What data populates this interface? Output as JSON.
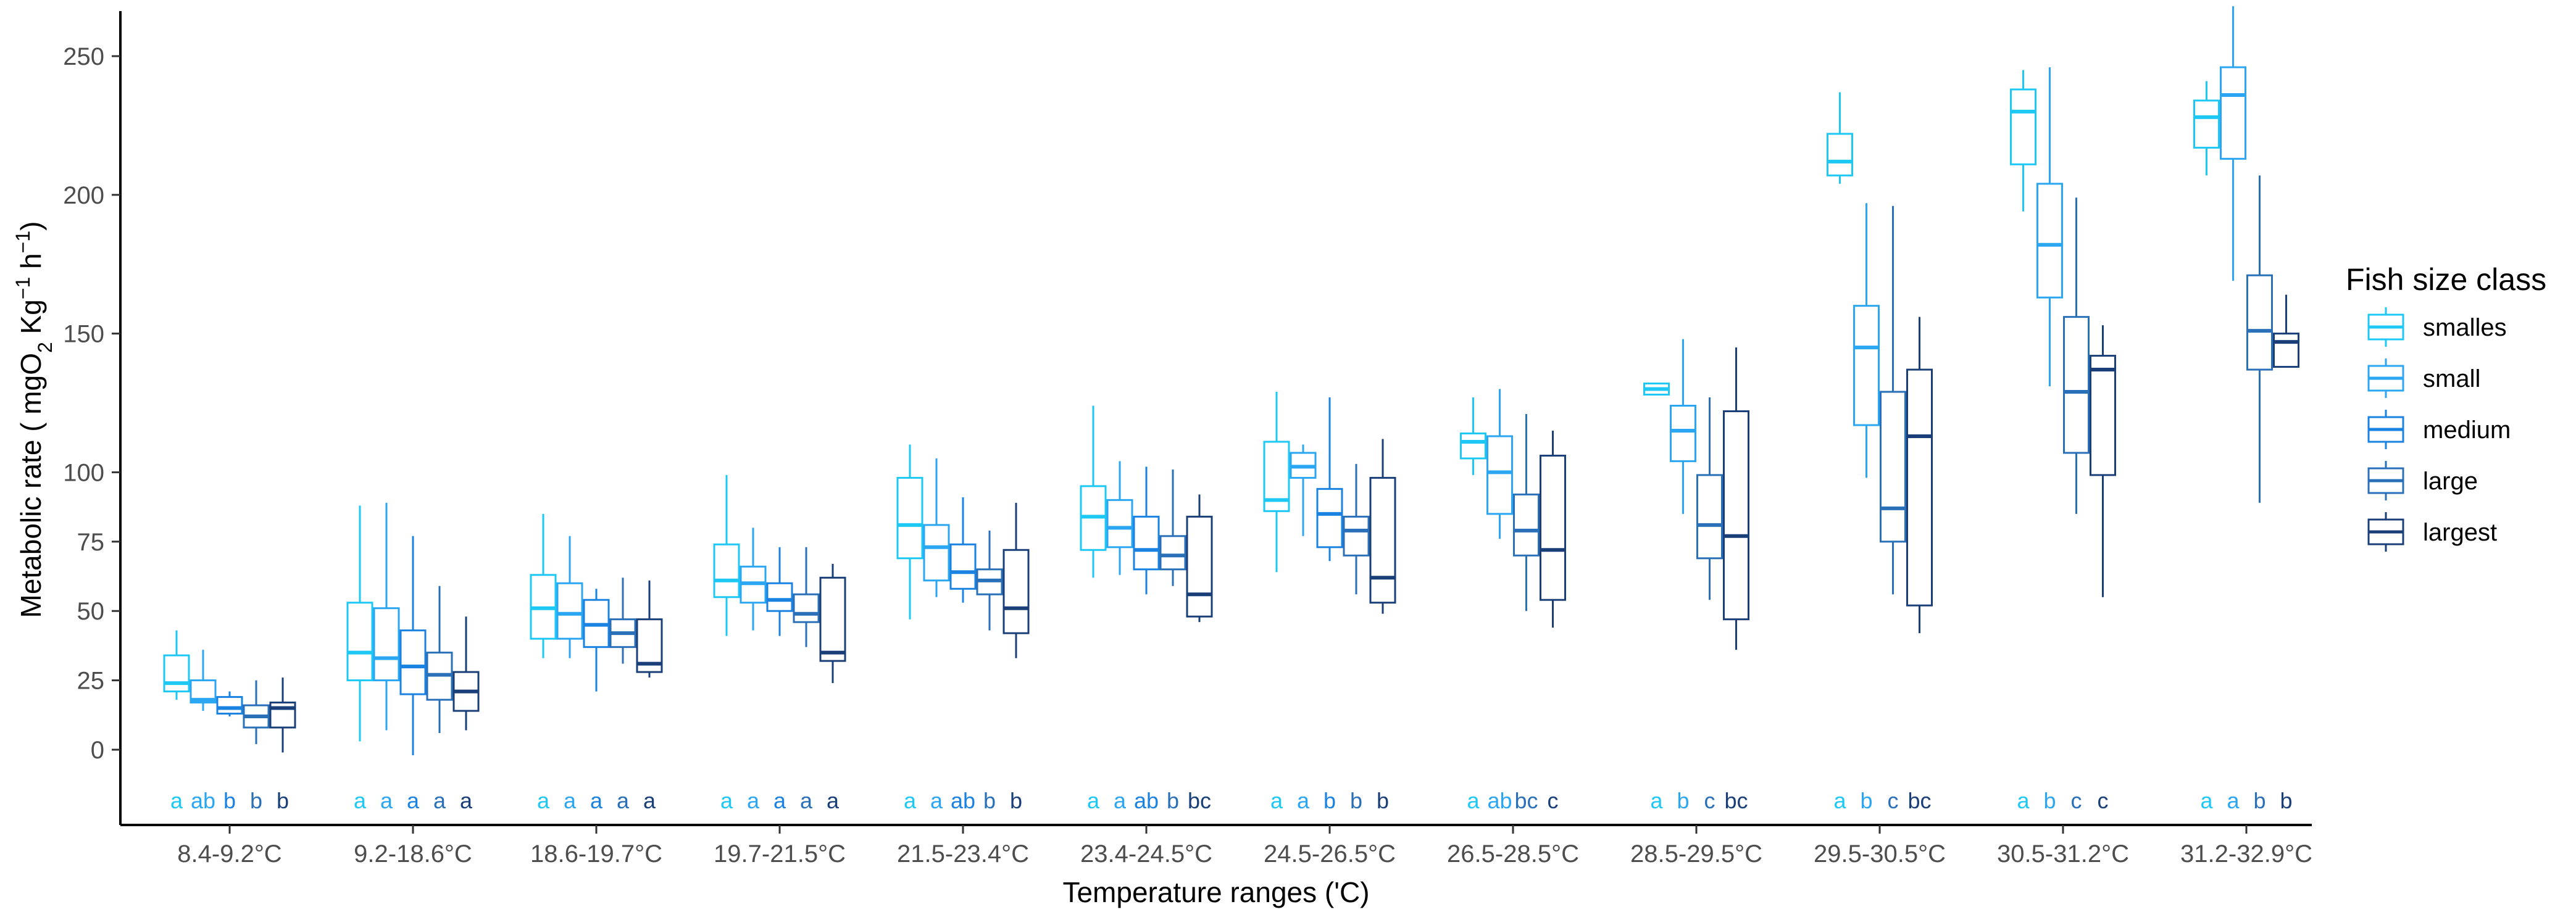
{
  "chart_data": {
    "type": "boxplot",
    "title": "",
    "xlabel": "Temperature ranges ('C)",
    "ylabel": {
      "prefix": "Metabolic rate ( mgO",
      "sub": "2",
      "mid1": " Kg",
      "sup1": "−1",
      "mid2": " h",
      "sup2": "−1",
      "suffix": ")"
    },
    "ylim": [
      -28,
      268
    ],
    "yticks": [
      0,
      25,
      50,
      75,
      100,
      150,
      200,
      250
    ],
    "categories": [
      "8.4-9.2°C",
      "9.2-18.6°C",
      "18.6-19.7°C",
      "19.7-21.5°C",
      "21.5-23.4°C",
      "23.4-24.5°C",
      "24.5-26.5°C",
      "26.5-28.5°C",
      "28.5-29.5°C",
      "29.5-30.5°C",
      "30.5-31.2°C",
      "31.2-32.9°C"
    ],
    "legend": {
      "title": "Fish size class",
      "position": "right",
      "entries": [
        "smalles",
        "small",
        "medium",
        "large",
        "largest"
      ]
    },
    "series": [
      {
        "name": "smalles",
        "color": "#1ec8f5",
        "stats": [
          [
            18,
            21,
            24,
            34,
            43
          ],
          [
            3,
            25,
            35,
            53,
            88
          ],
          [
            33,
            40,
            51,
            63,
            85
          ],
          [
            41,
            55,
            61,
            74,
            99
          ],
          [
            47,
            69,
            81,
            98,
            110
          ],
          [
            62,
            72,
            84,
            95,
            124
          ],
          [
            64,
            86,
            90,
            111,
            129
          ],
          [
            99,
            105,
            111,
            114,
            127
          ],
          [
            null,
            128,
            130,
            132,
            null
          ],
          [
            204,
            207,
            212,
            222,
            237
          ],
          [
            194,
            211,
            230,
            238,
            245
          ],
          [
            207,
            217,
            228,
            234,
            241
          ]
        ]
      },
      {
        "name": "small",
        "color": "#2aa6f2",
        "stats": [
          [
            14,
            17,
            18,
            25,
            36
          ],
          [
            7,
            25,
            33,
            51,
            89
          ],
          [
            33,
            40,
            49,
            60,
            77
          ],
          [
            43,
            53,
            60,
            66,
            80
          ],
          [
            55,
            61,
            73,
            81,
            105
          ],
          [
            63,
            73,
            80,
            90,
            104
          ],
          [
            77,
            98,
            102,
            107,
            110
          ],
          [
            76,
            85,
            100,
            113,
            130
          ],
          [
            85,
            104,
            115,
            124,
            148
          ],
          [
            98,
            117,
            145,
            160,
            197
          ],
          [
            131,
            163,
            182,
            204,
            246
          ],
          [
            169,
            213,
            236,
            246,
            268
          ]
        ]
      },
      {
        "name": "medium",
        "color": "#1a82e0",
        "stats": [
          [
            12,
            13,
            15,
            19,
            21
          ],
          [
            -2,
            20,
            30,
            43,
            77
          ],
          [
            21,
            37,
            45,
            54,
            58
          ],
          [
            41,
            50,
            54,
            60,
            73
          ],
          [
            53,
            58,
            64,
            74,
            91
          ],
          [
            56,
            65,
            72,
            84,
            102
          ],
          [
            68,
            73,
            85,
            94,
            127
          ],
          [
            null,
            null,
            null,
            null,
            null
          ],
          [
            null,
            null,
            null,
            null,
            null
          ],
          [
            null,
            null,
            null,
            null,
            null
          ],
          [
            null,
            null,
            null,
            null,
            null
          ],
          [
            null,
            null,
            null,
            null,
            null
          ]
        ]
      },
      {
        "name": "large",
        "color": "#2a70b8",
        "stats": [
          [
            2,
            8,
            12,
            16,
            25
          ],
          [
            6,
            18,
            27,
            35,
            59
          ],
          [
            31,
            37,
            42,
            47,
            62
          ],
          [
            37,
            46,
            49,
            56,
            73
          ],
          [
            43,
            56,
            61,
            65,
            79
          ],
          [
            59,
            65,
            70,
            77,
            101
          ],
          [
            56,
            70,
            79,
            84,
            103
          ],
          [
            50,
            70,
            79,
            92,
            121
          ],
          [
            54,
            69,
            81,
            99,
            127
          ],
          [
            56,
            75,
            87,
            129,
            196
          ],
          [
            85,
            107,
            129,
            156,
            199
          ],
          [
            89,
            137,
            151,
            171,
            207
          ]
        ]
      },
      {
        "name": "largest",
        "color": "#1a3f78",
        "stats": [
          [
            -1,
            8,
            15,
            17,
            26
          ],
          [
            7,
            14,
            21,
            28,
            48
          ],
          [
            26,
            28,
            31,
            47,
            61
          ],
          [
            24,
            32,
            35,
            62,
            67
          ],
          [
            33,
            42,
            51,
            72,
            89
          ],
          [
            46,
            48,
            56,
            84,
            92
          ],
          [
            49,
            53,
            62,
            98,
            112
          ],
          [
            44,
            54,
            72,
            106,
            115
          ],
          [
            36,
            47,
            77,
            122,
            145
          ],
          [
            42,
            52,
            113,
            137,
            156
          ],
          [
            55,
            99,
            137,
            142,
            153
          ],
          [
            138,
            138,
            147,
            150,
            164
          ]
        ]
      }
    ],
    "significance": [
      [
        {
          "t": "a",
          "s": 0
        },
        {
          "t": "ab",
          "s": 1
        },
        {
          "t": "b",
          "s": 2
        },
        {
          "t": "b",
          "s": 3
        },
        {
          "t": "b",
          "s": 4
        }
      ],
      [
        {
          "t": "a",
          "s": 0
        },
        {
          "t": "a",
          "s": 1
        },
        {
          "t": "a",
          "s": 2
        },
        {
          "t": "a",
          "s": 3
        },
        {
          "t": "a",
          "s": 4
        }
      ],
      [
        {
          "t": "a",
          "s": 0
        },
        {
          "t": "a",
          "s": 1
        },
        {
          "t": "a",
          "s": 2
        },
        {
          "t": "a",
          "s": 3
        },
        {
          "t": "a",
          "s": 4
        }
      ],
      [
        {
          "t": "a",
          "s": 0
        },
        {
          "t": "a",
          "s": 1
        },
        {
          "t": "a",
          "s": 2
        },
        {
          "t": "a",
          "s": 3
        },
        {
          "t": "a",
          "s": 4
        }
      ],
      [
        {
          "t": "a",
          "s": 0
        },
        {
          "t": "a",
          "s": 1
        },
        {
          "t": "ab",
          "s": 2
        },
        {
          "t": "b",
          "s": 3
        },
        {
          "t": "b",
          "s": 4
        }
      ],
      [
        {
          "t": "a",
          "s": 0
        },
        {
          "t": "a",
          "s": 1
        },
        {
          "t": "ab",
          "s": 2
        },
        {
          "t": "b",
          "s": 3
        },
        {
          "t": "bc",
          "s": 4
        }
      ],
      [
        {
          "t": "a",
          "s": 0
        },
        {
          "t": "a",
          "s": 1
        },
        {
          "t": "b",
          "s": 2
        },
        {
          "t": "b",
          "s": 3
        },
        {
          "t": "b",
          "s": 4
        }
      ],
      [
        {
          "t": "a",
          "s": 0
        },
        {
          "t": "ab",
          "s": 1
        },
        {
          "t": "bc",
          "s": 3
        },
        {
          "t": "c",
          "s": 4
        }
      ],
      [
        {
          "t": "a",
          "s": 0
        },
        {
          "t": "b",
          "s": 1
        },
        {
          "t": "c",
          "s": 3
        },
        {
          "t": "bc",
          "s": 4
        }
      ],
      [
        {
          "t": "a",
          "s": 0
        },
        {
          "t": "b",
          "s": 1
        },
        {
          "t": "c",
          "s": 3
        },
        {
          "t": "bc",
          "s": 4
        }
      ],
      [
        {
          "t": "a",
          "s": 0
        },
        {
          "t": "b",
          "s": 1
        },
        {
          "t": "c",
          "s": 3
        },
        {
          "t": "c",
          "s": 4
        }
      ],
      [
        {
          "t": "a",
          "s": 0
        },
        {
          "t": "a",
          "s": 1
        },
        {
          "t": "b",
          "s": 3
        },
        {
          "t": "b",
          "s": 4
        }
      ]
    ]
  }
}
